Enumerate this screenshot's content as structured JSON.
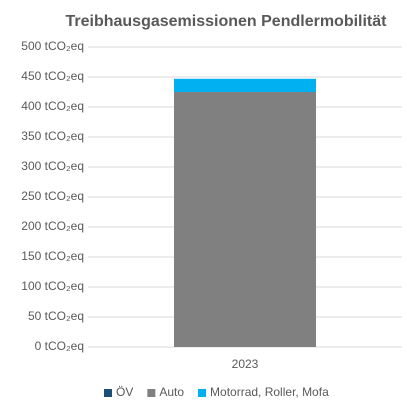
{
  "chart_data": {
    "type": "stacked_bar",
    "title": "Treibhausgasemissionen Pendlermobilität",
    "categories": [
      "2023"
    ],
    "series": [
      {
        "name": "ÖV",
        "color": "#1f4e79",
        "values": [
          0
        ]
      },
      {
        "name": "Auto",
        "color": "#808080",
        "values": [
          425
        ]
      },
      {
        "name": "Motorrad, Roller, Mofa",
        "color": "#00b0f0",
        "values": [
          22
        ]
      }
    ],
    "ylim": [
      0,
      500
    ],
    "yticks": [
      {
        "value": 0,
        "label": "0 tCO₂eq"
      },
      {
        "value": 50,
        "label": "50 tCO₂eq"
      },
      {
        "value": 100,
        "label": "100 tCO₂eq"
      },
      {
        "value": 150,
        "label": "150 tCO₂eq"
      },
      {
        "value": 200,
        "label": "200 tCO₂eq"
      },
      {
        "value": 250,
        "label": "250 tCO₂eq"
      },
      {
        "value": 300,
        "label": "300 tCO₂eq"
      },
      {
        "value": 350,
        "label": "350 tCO₂eq"
      },
      {
        "value": 400,
        "label": "400 tCO₂eq"
      },
      {
        "value": 450,
        "label": "450 tCO₂eq"
      },
      {
        "value": 500,
        "label": "500 tCO₂eq"
      }
    ],
    "grid": true,
    "legend": "bottom"
  }
}
